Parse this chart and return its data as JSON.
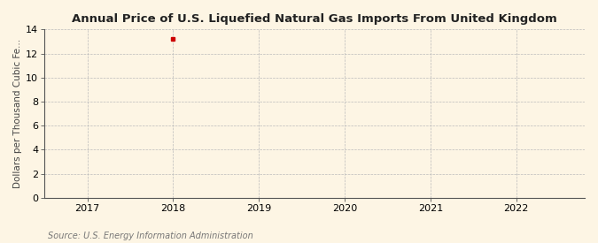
{
  "title": "Annual Price of U.S. Liquefied Natural Gas Imports From United Kingdom",
  "ylabel": "Dollars per Thousand Cubic Fe...",
  "source": "Source: U.S. Energy Information Administration",
  "data_x": [
    2018
  ],
  "data_y": [
    13.2
  ],
  "marker_color": "#cc0000",
  "marker": "s",
  "marker_size": 3,
  "xlim": [
    2016.5,
    2022.8
  ],
  "ylim": [
    0,
    14
  ],
  "xticks": [
    2017,
    2018,
    2019,
    2020,
    2021,
    2022
  ],
  "yticks": [
    0,
    2,
    4,
    6,
    8,
    10,
    12,
    14
  ],
  "background_color": "#fdf5e4",
  "plot_background_color": "#fdf5e4",
  "grid_color": "#bbbbbb",
  "title_fontsize": 9.5,
  "label_fontsize": 7.5,
  "tick_fontsize": 8,
  "source_fontsize": 7
}
